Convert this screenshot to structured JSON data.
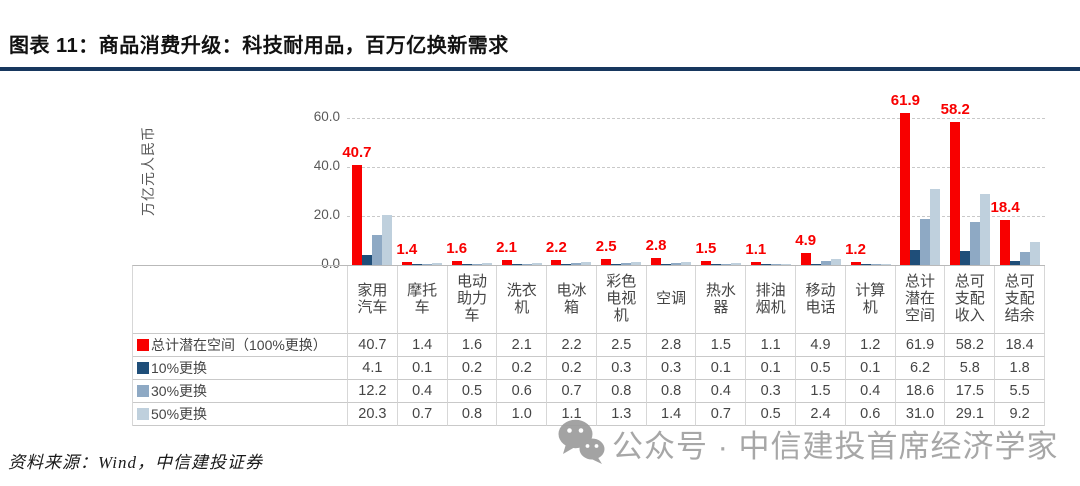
{
  "page": {
    "title": "图表 11：商品消费升级：科技耐用品，百万亿换新需求",
    "source_note": "资料来源：Wind，中信建投证券",
    "watermark_text": "公众号 · 中信建投首席经济学家"
  },
  "colors": {
    "title_underline": "#17375e",
    "data_label_red": "#f80000",
    "gridline": "#c9c9c9",
    "axis_text": "#595959",
    "table_text": "#454545",
    "watermark_gray": "#a0a0a0"
  },
  "chart_data": {
    "type": "bar",
    "title": "",
    "ylabel": "万亿元人民币",
    "xlabel": "",
    "ylim": [
      0,
      60
    ],
    "yticks": [
      0,
      20,
      40,
      60
    ],
    "ytick_labels": [
      "0.0",
      "20.0",
      "40.0",
      "60.0"
    ],
    "grid": true,
    "legend_position": "data-table-left-column",
    "data_labels_on_series": "总计潜在空间（100%更换）",
    "categories": [
      "家用汽车",
      "摩托车",
      "电动助力车",
      "洗衣机",
      "电冰箱",
      "彩色电视机",
      "空调",
      "热水器",
      "排油烟机",
      "移动电话",
      "计算机",
      "总计潜在空间",
      "总可支配收入",
      "总可支配结余"
    ],
    "series": [
      {
        "name": "总计潜在空间（100%更换）",
        "color": "#f80000",
        "values": [
          40.7,
          1.4,
          1.6,
          2.1,
          2.2,
          2.5,
          2.8,
          1.5,
          1.1,
          4.9,
          1.2,
          61.9,
          58.2,
          18.4
        ]
      },
      {
        "name": "10%更换",
        "color": "#1f4e79",
        "values": [
          4.1,
          0.1,
          0.2,
          0.2,
          0.2,
          0.3,
          0.3,
          0.1,
          0.1,
          0.5,
          0.1,
          6.2,
          5.8,
          1.8
        ]
      },
      {
        "name": "30%更换",
        "color": "#8ea9c4",
        "values": [
          12.2,
          0.4,
          0.5,
          0.6,
          0.7,
          0.8,
          0.8,
          0.4,
          0.3,
          1.5,
          0.4,
          18.6,
          17.5,
          5.5
        ]
      },
      {
        "name": "50%更换",
        "color": "#bfd0dd",
        "values": [
          20.3,
          0.7,
          0.8,
          1.0,
          1.1,
          1.3,
          1.4,
          0.7,
          0.5,
          2.4,
          0.6,
          31.0,
          29.1,
          9.2
        ]
      }
    ]
  }
}
